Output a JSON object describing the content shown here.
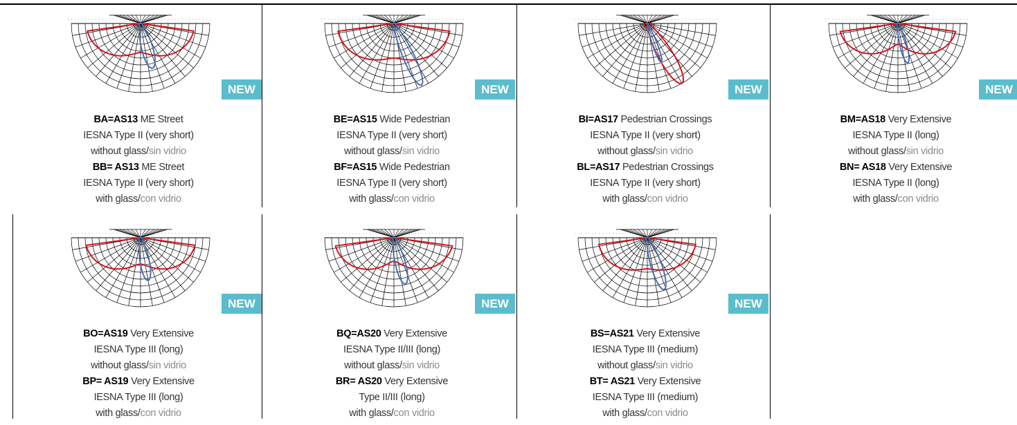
{
  "items": [
    {
      "badge": "NEW",
      "variants": [
        {
          "code": "BA=AS13",
          "name": "ME Street",
          "type": "IESNA Type II (very short)",
          "glass": "without glass/",
          "glass_es": "sin vidrio"
        },
        {
          "code": "BB= AS13",
          "name": "ME Street",
          "type": "IESNA Type II (very short)",
          "glass": "with glass/",
          "glass_es": "con vidrio"
        }
      ]
    },
    {
      "badge": "NEW",
      "variants": [
        {
          "code": "BE=AS15",
          "name": "Wide Pedestrian",
          "type": "IESNA Type II (very short)",
          "glass": "without glass/",
          "glass_es": "sin vidrio"
        },
        {
          "code": "BF=AS15",
          "name": "Wide Pedestrian",
          "type": "IESNA Type II (very short)",
          "glass": "with glass/",
          "glass_es": "con vidrio"
        }
      ]
    },
    {
      "badge": "NEW",
      "variants": [
        {
          "code": "BI=AS17",
          "name": "Pedestrian Crossings",
          "type": "IESNA Type II (very short)",
          "glass": "without glass/",
          "glass_es": "sin vidrio"
        },
        {
          "code": "BL=AS17",
          "name": "Pedestrian Crossings",
          "type": "IESNA Type II (very short)",
          "glass": "with glass/",
          "glass_es": "con vidrio"
        }
      ]
    },
    {
      "badge": "NEW",
      "variants": [
        {
          "code": "BM=AS18",
          "name": "Very Extensive",
          "type": "IESNA Type II (long)",
          "glass": "without glass/",
          "glass_es": "sin vidrio"
        },
        {
          "code": "BN= AS18",
          "name": "Very Extensive",
          "type": "IESNA Type II (long)",
          "glass": "with glass/",
          "glass_es": "con vidrio"
        }
      ]
    },
    {
      "badge": "NEW",
      "variants": [
        {
          "code": "BO=AS19",
          "name": "Very Extensive",
          "type": "IESNA Type III (long)",
          "glass": "without glass/",
          "glass_es": "sin vidrio"
        },
        {
          "code": "BP= AS19",
          "name": "Very Extensive",
          "type": "IESNA Type III (long)",
          "glass": "with glass/",
          "glass_es": "con vidrio"
        }
      ]
    },
    {
      "badge": "NEW",
      "variants": [
        {
          "code": "BQ=AS20",
          "name": "Very Extensive",
          "type": "IESNA Type II/III (long)",
          "glass": "without glass/",
          "glass_es": "sin vidrio"
        },
        {
          "code": "BR= AS20",
          "name": "Very Extensive",
          "type": "Type II/III (long)",
          "glass": "with glass/",
          "glass_es": "con vidrio"
        }
      ]
    },
    {
      "badge": "NEW",
      "variants": [
        {
          "code": "BS=AS21",
          "name": "Very Extensive",
          "type": "IESNA Type III (medium)",
          "glass": "without glass/",
          "glass_es": "sin vidrio"
        },
        {
          "code": "BT= AS21",
          "name": "Very Extensive",
          "type": "IESNA Type III (medium)",
          "glass": "with glass/",
          "glass_es": "con vidrio"
        }
      ]
    }
  ]
}
